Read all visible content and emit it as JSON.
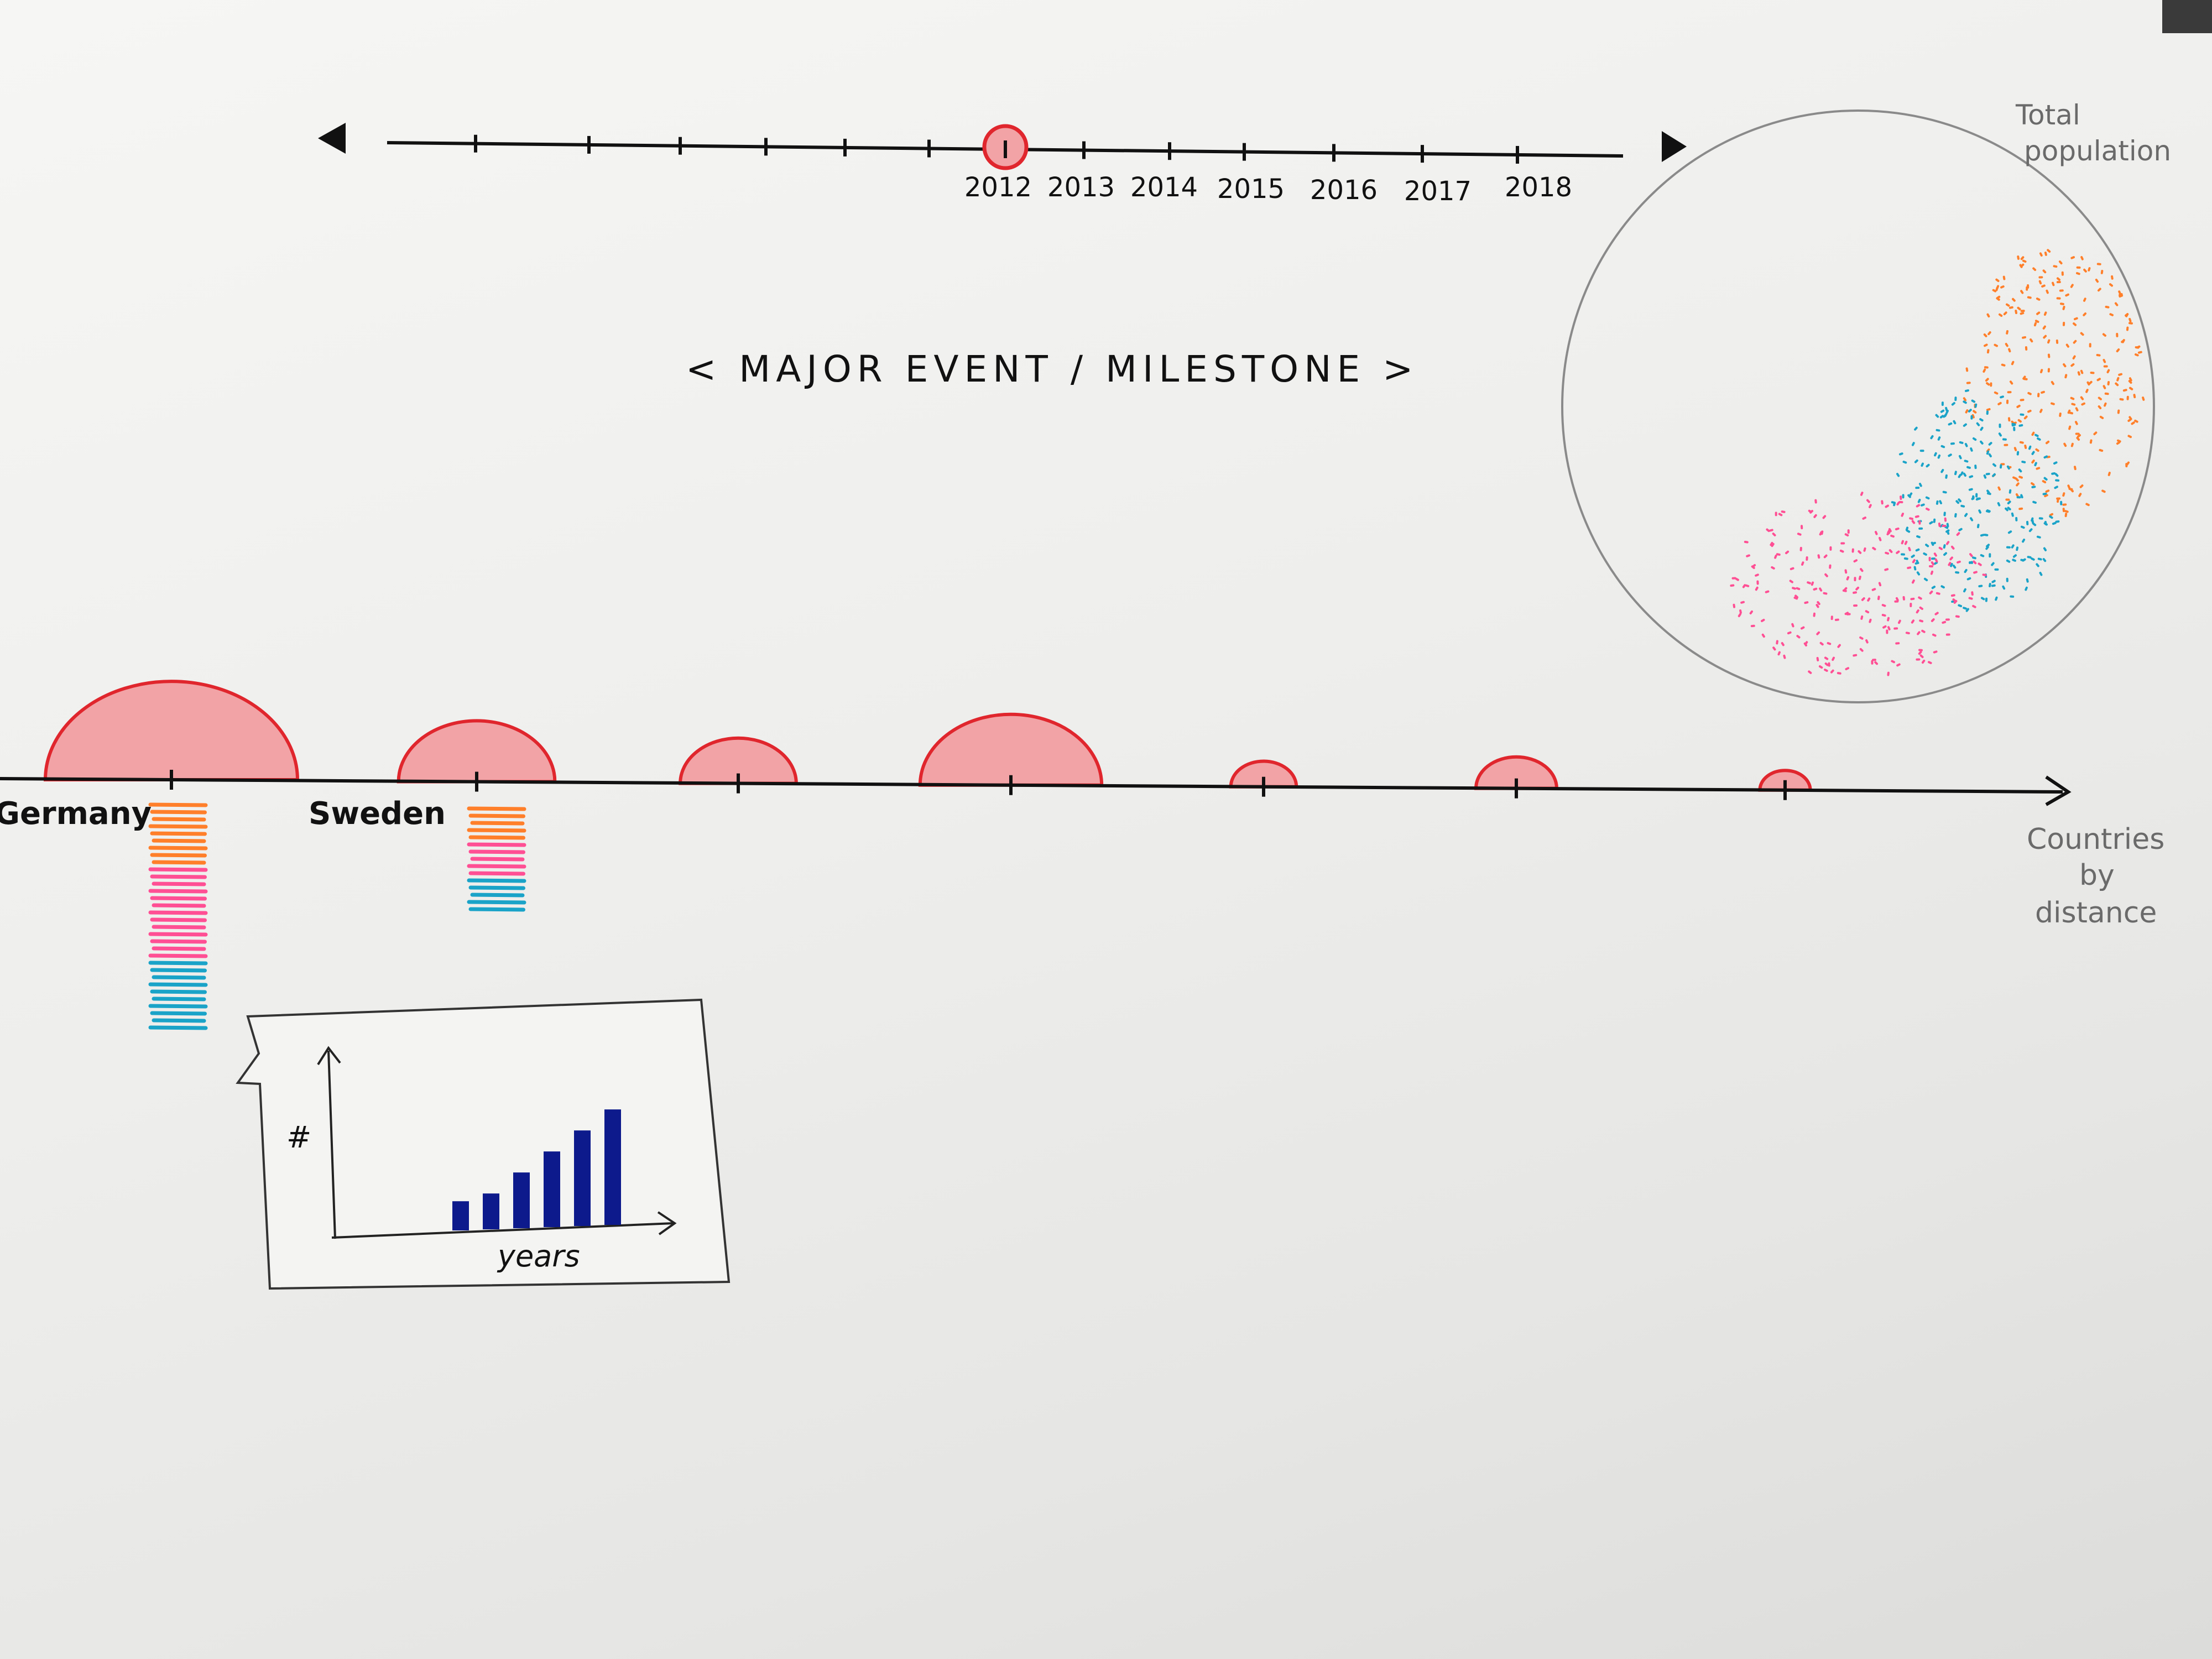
{
  "timeline": {
    "years": [
      "2012",
      "2013",
      "2014",
      "2015",
      "2016",
      "2017",
      "2018"
    ],
    "selected": "2012"
  },
  "event_title": "< MAJOR EVENT / MILESTONE >",
  "population": {
    "label_line1": "Total",
    "label_line2": "population",
    "clusters": [
      {
        "color": "#ff7f2a"
      },
      {
        "color": "#1aa3c8"
      },
      {
        "color": "#ff4f94"
      }
    ]
  },
  "countries_axis": {
    "label_line1": "Countries",
    "label_line2": "by",
    "label_line3": "distance",
    "countries": [
      {
        "name": "Germany",
        "size": 1.0
      },
      {
        "name": "Sweden",
        "size": 0.62
      },
      {
        "name": "",
        "size": 0.46
      },
      {
        "name": "",
        "size": 0.72
      },
      {
        "name": "",
        "size": 0.26
      },
      {
        "name": "",
        "size": 0.32
      },
      {
        "name": "",
        "size": 0.2
      }
    ]
  },
  "stacks": [
    {
      "country": "Germany",
      "orange": 9,
      "pink": 13,
      "blue": 10
    },
    {
      "country": "Sweden",
      "orange": 5,
      "pink": 5,
      "blue": 5
    }
  ],
  "inset": {
    "y_label": "#",
    "x_label": "years",
    "bars": [
      0.22,
      0.27,
      0.42,
      0.57,
      0.72,
      0.87
    ],
    "bar_color": "#0d1a8c"
  },
  "colors": {
    "bubble_fill": "#f2a3a6",
    "bubble_stroke": "#e0262d",
    "orange": "#ff7f2a",
    "pink": "#ff4f94",
    "blue": "#1aa3c8"
  }
}
